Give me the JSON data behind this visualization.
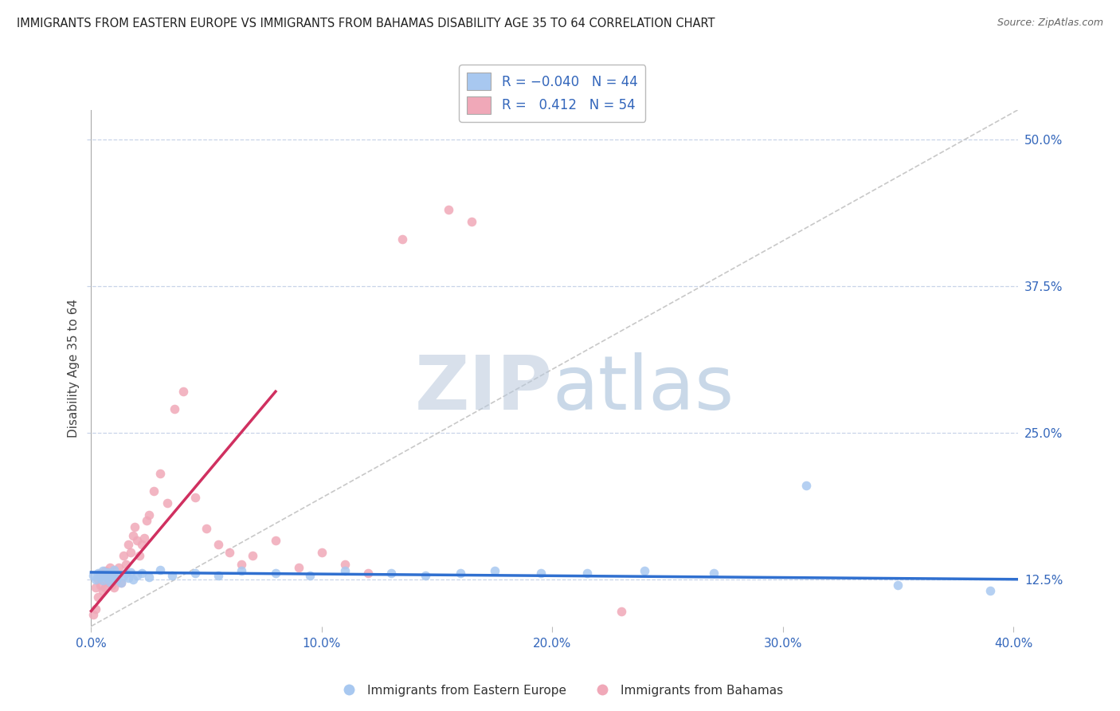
{
  "title": "IMMIGRANTS FROM EASTERN EUROPE VS IMMIGRANTS FROM BAHAMAS DISABILITY AGE 35 TO 64 CORRELATION CHART",
  "source": "Source: ZipAtlas.com",
  "ylabel": "Disability Age 35 to 64",
  "xlim": [
    -0.002,
    0.402
  ],
  "ylim": [
    0.085,
    0.525
  ],
  "xticks": [
    0.0,
    0.1,
    0.2,
    0.3,
    0.4
  ],
  "xticklabels": [
    "0.0%",
    "10.0%",
    "20.0%",
    "30.0%",
    "40.0%"
  ],
  "yticks": [
    0.125,
    0.25,
    0.375,
    0.5
  ],
  "yticklabels": [
    "12.5%",
    "25.0%",
    "37.5%",
    "50.0%"
  ],
  "r_blue": -0.04,
  "n_blue": 44,
  "r_pink": 0.412,
  "n_pink": 54,
  "blue_color": "#a8c8f0",
  "pink_color": "#f0a8b8",
  "blue_line_color": "#3070d0",
  "pink_line_color": "#d03060",
  "diag_line_color": "#c8c8c8",
  "grid_color": "#c8d4e8",
  "background_color": "#ffffff",
  "watermark_zip": "ZIP",
  "watermark_atlas": "atlas",
  "blue_scatter_x": [
    0.001,
    0.002,
    0.003,
    0.004,
    0.005,
    0.005,
    0.006,
    0.007,
    0.007,
    0.008,
    0.008,
    0.009,
    0.01,
    0.01,
    0.011,
    0.012,
    0.013,
    0.014,
    0.015,
    0.016,
    0.017,
    0.018,
    0.02,
    0.022,
    0.025,
    0.03,
    0.035,
    0.045,
    0.055,
    0.065,
    0.08,
    0.095,
    0.11,
    0.13,
    0.145,
    0.16,
    0.175,
    0.195,
    0.215,
    0.24,
    0.27,
    0.31,
    0.35,
    0.39
  ],
  "blue_scatter_y": [
    0.128,
    0.125,
    0.13,
    0.127,
    0.132,
    0.124,
    0.129,
    0.126,
    0.131,
    0.123,
    0.128,
    0.13,
    0.127,
    0.133,
    0.125,
    0.129,
    0.122,
    0.128,
    0.13,
    0.126,
    0.131,
    0.125,
    0.128,
    0.13,
    0.127,
    0.133,
    0.128,
    0.13,
    0.128,
    0.132,
    0.13,
    0.128,
    0.132,
    0.13,
    0.128,
    0.13,
    0.132,
    0.13,
    0.13,
    0.132,
    0.13,
    0.205,
    0.12,
    0.115
  ],
  "pink_scatter_x": [
    0.001,
    0.002,
    0.002,
    0.003,
    0.003,
    0.004,
    0.004,
    0.005,
    0.005,
    0.006,
    0.006,
    0.007,
    0.007,
    0.008,
    0.008,
    0.009,
    0.009,
    0.01,
    0.01,
    0.011,
    0.012,
    0.013,
    0.014,
    0.015,
    0.016,
    0.017,
    0.018,
    0.019,
    0.02,
    0.021,
    0.022,
    0.023,
    0.024,
    0.025,
    0.027,
    0.03,
    0.033,
    0.036,
    0.04,
    0.045,
    0.05,
    0.055,
    0.06,
    0.065,
    0.07,
    0.08,
    0.09,
    0.1,
    0.11,
    0.12,
    0.135,
    0.155,
    0.165,
    0.23
  ],
  "pink_scatter_y": [
    0.095,
    0.1,
    0.118,
    0.11,
    0.125,
    0.12,
    0.13,
    0.115,
    0.128,
    0.118,
    0.132,
    0.122,
    0.128,
    0.125,
    0.135,
    0.12,
    0.13,
    0.118,
    0.128,
    0.125,
    0.135,
    0.122,
    0.145,
    0.138,
    0.155,
    0.148,
    0.162,
    0.17,
    0.158,
    0.145,
    0.155,
    0.16,
    0.175,
    0.18,
    0.2,
    0.215,
    0.19,
    0.27,
    0.285,
    0.195,
    0.168,
    0.155,
    0.148,
    0.138,
    0.145,
    0.158,
    0.135,
    0.148,
    0.138,
    0.13,
    0.415,
    0.44,
    0.43,
    0.098
  ],
  "pink_line_x": [
    0.0,
    0.08
  ],
  "pink_line_y": [
    0.098,
    0.285
  ],
  "blue_line_x": [
    0.0,
    0.402
  ],
  "blue_line_y": [
    0.131,
    0.125
  ]
}
